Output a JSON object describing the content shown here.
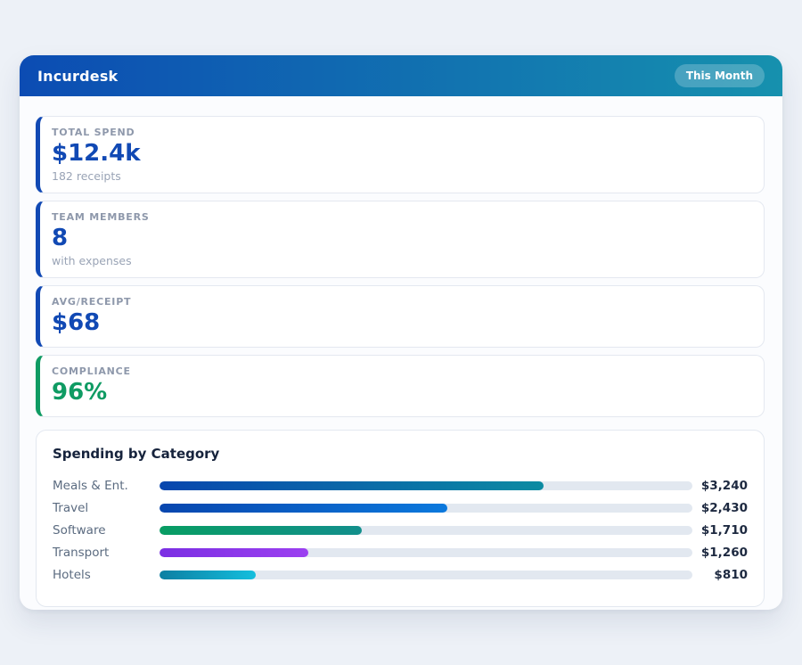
{
  "colors": {
    "page_bg": "#edf1f7",
    "header_gradient_from": "#0c4cb3",
    "header_gradient_to": "#1691ae",
    "accent_blue": "#1149b4",
    "accent_green": "#0f9b63",
    "bar_track": "#e2e8f0"
  },
  "header": {
    "title": "Incurdesk",
    "period_badge": "This Month"
  },
  "stats": [
    {
      "label": "TOTAL SPEND",
      "value": "$12.4k",
      "sub": "182 receipts",
      "accent": "#1149b4",
      "value_color": "#1149b4"
    },
    {
      "label": "TEAM MEMBERS",
      "value": "8",
      "sub": "with expenses",
      "accent": "#1149b4",
      "value_color": "#1149b4"
    },
    {
      "label": "AVG/RECEIPT",
      "value": "$68",
      "sub": "",
      "accent": "#1149b4",
      "value_color": "#1149b4"
    },
    {
      "label": "COMPLIANCE",
      "value": "96%",
      "sub": "",
      "accent": "#0f9b63",
      "value_color": "#0f9b63"
    }
  ],
  "chart_data": {
    "type": "bar",
    "orientation": "horizontal",
    "title": "Spending by Category",
    "categories": [
      "Meals & Ent.",
      "Travel",
      "Software",
      "Transport",
      "Hotels"
    ],
    "values": [
      3240,
      2430,
      1710,
      1260,
      810
    ],
    "value_labels": [
      "$3,240",
      "$2,430",
      "$1,710",
      "$1,260",
      "$810"
    ],
    "xlim": [
      0,
      4500
    ],
    "grid": false,
    "legend": false,
    "bar_colors": [
      [
        "#0846ae",
        "#0c8ba2"
      ],
      [
        "#0846ae",
        "#0b79dd"
      ],
      [
        "#089d63",
        "#128f8c"
      ],
      [
        "#7b2fe3",
        "#9c40f0"
      ],
      [
        "#0d7fa2",
        "#14bedd"
      ]
    ]
  }
}
